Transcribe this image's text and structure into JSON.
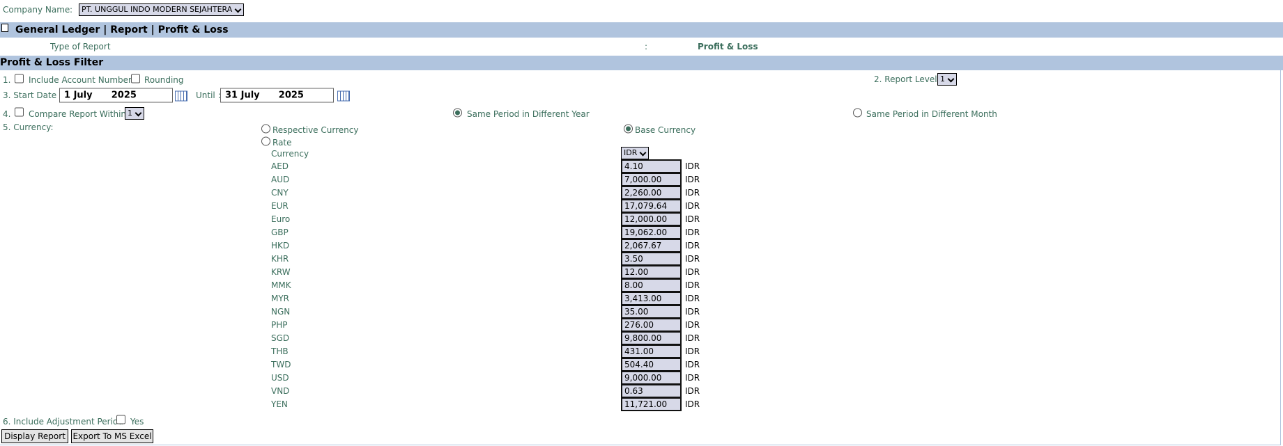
{
  "company": {
    "label": "Company Name",
    "value": "PT. UNGGUL INDO MODERN SEJAHTERA"
  },
  "header": {
    "title": "General Ledger | Report | Profit & Loss"
  },
  "report_type": {
    "label": "Type of Report",
    "value": "Profit & Loss"
  },
  "filter": {
    "title": "Profit & Loss Filter",
    "row1": {
      "number": "1.",
      "include_account_numbers": "Include Account Numbers",
      "rounding": "Rounding",
      "report_level_label": "2. Report Level:",
      "report_level": "1"
    },
    "row3": {
      "label": "3. Start Date :",
      "start_date": "1 July      2025",
      "until_label": "Until :",
      "until_date": "31 July      2025"
    },
    "row4": {
      "number": "4.",
      "label": "Compare Report Within :",
      "within": "1",
      "same_year": "Same Period in Different Year",
      "same_month": "Same Period in Different Month"
    },
    "row5": {
      "label": "5. Currency:",
      "respective": "Respective Currency",
      "base": "Base Currency",
      "rate": "Rate",
      "currency_header": "Currency",
      "base_select": "IDR"
    },
    "rates": [
      {
        "code": "AED",
        "rate": "4.10",
        "unit": "IDR"
      },
      {
        "code": "AUD",
        "rate": "7,000.00",
        "unit": "IDR"
      },
      {
        "code": "CNY",
        "rate": "2,260.00",
        "unit": "IDR"
      },
      {
        "code": "EUR",
        "rate": "17,079.64",
        "unit": "IDR"
      },
      {
        "code": "Euro",
        "rate": "12,000.00",
        "unit": "IDR"
      },
      {
        "code": "GBP",
        "rate": "19,062.00",
        "unit": "IDR"
      },
      {
        "code": "HKD",
        "rate": "2,067.67",
        "unit": "IDR"
      },
      {
        "code": "KHR",
        "rate": "3.50",
        "unit": "IDR"
      },
      {
        "code": "KRW",
        "rate": "12.00",
        "unit": "IDR"
      },
      {
        "code": "MMK",
        "rate": "8.00",
        "unit": "IDR"
      },
      {
        "code": "MYR",
        "rate": "3,413.00",
        "unit": "IDR"
      },
      {
        "code": "NGN",
        "rate": "35.00",
        "unit": "IDR"
      },
      {
        "code": "PHP",
        "rate": "276.00",
        "unit": "IDR"
      },
      {
        "code": "SGD",
        "rate": "9,800.00",
        "unit": "IDR"
      },
      {
        "code": "THB",
        "rate": "431.00",
        "unit": "IDR"
      },
      {
        "code": "TWD",
        "rate": "504.40",
        "unit": "IDR"
      },
      {
        "code": "USD",
        "rate": "9,000.00",
        "unit": "IDR"
      },
      {
        "code": "VND",
        "rate": "0.63",
        "unit": "IDR"
      },
      {
        "code": "YEN",
        "rate": "11,721.00",
        "unit": "IDR"
      }
    ],
    "row6": {
      "label": "6. Include Adjustment Period",
      "yes": "Yes"
    },
    "buttons": {
      "display": "Display Report",
      "export": "Export To MS Excel"
    }
  }
}
